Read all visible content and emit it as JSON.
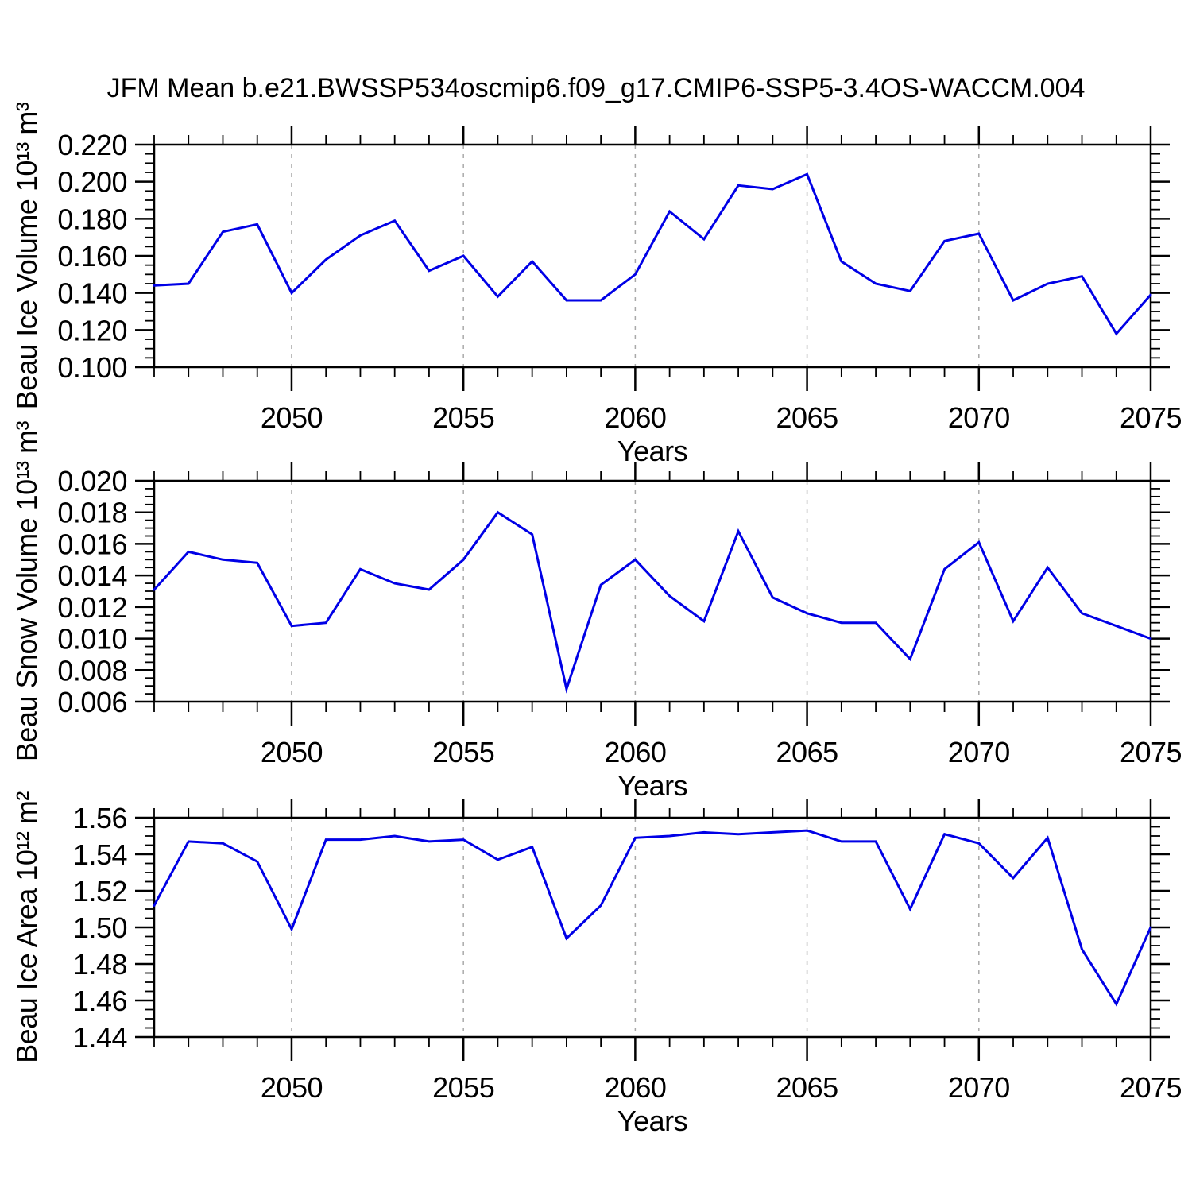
{
  "title": "JFM Mean b.e21.BWSSP534oscmip6.f09_g17.CMIP6-SSP5-3.4OS-WACCM.004",
  "line_color": "#0000e6",
  "gridline_color": "#a9a9a9",
  "x_axis": {
    "label": "Years",
    "domain": [
      2046,
      2075
    ],
    "tick_values": [
      2050,
      2055,
      2060,
      2065,
      2070,
      2075
    ],
    "tick_labels": [
      "2050",
      "2055",
      "2060",
      "2065",
      "2070",
      "2075"
    ],
    "minor_step_years": 1,
    "gridline_years": [
      2050,
      2055,
      2060,
      2065,
      2070
    ],
    "years": [
      2046,
      2047,
      2048,
      2049,
      2050,
      2051,
      2052,
      2053,
      2054,
      2055,
      2056,
      2057,
      2058,
      2059,
      2060,
      2061,
      2062,
      2063,
      2064,
      2065,
      2066,
      2067,
      2068,
      2069,
      2070,
      2071,
      2072,
      2073,
      2074,
      2075
    ]
  },
  "chart_data": [
    {
      "type": "line",
      "series_name": "beau-ice-volume",
      "ylabel": "Beau Ice Volume 10¹³ m³",
      "xlabel": "Years",
      "ylim": [
        0.1,
        0.22
      ],
      "ytick_values": [
        0.1,
        0.12,
        0.14,
        0.16,
        0.18,
        0.2,
        0.22
      ],
      "ytick_labels": [
        "0.100",
        "0.120",
        "0.140",
        "0.160",
        "0.180",
        "0.200",
        "0.220"
      ],
      "y_minor_step": 0.005,
      "values": [
        0.144,
        0.145,
        0.173,
        0.177,
        0.14,
        0.158,
        0.171,
        0.179,
        0.152,
        0.16,
        0.138,
        0.157,
        0.136,
        0.136,
        0.15,
        0.184,
        0.169,
        0.198,
        0.196,
        0.204,
        0.157,
        0.145,
        0.141,
        0.168,
        0.172,
        0.136,
        0.145,
        0.149,
        0.118,
        0.139
      ]
    },
    {
      "type": "line",
      "series_name": "beau-snow-volume",
      "ylabel": "Beau Snow Volume 10¹³ m³",
      "xlabel": "Years",
      "ylim": [
        0.006,
        0.02
      ],
      "ytick_values": [
        0.006,
        0.008,
        0.01,
        0.012,
        0.014,
        0.016,
        0.018,
        0.02
      ],
      "ytick_labels": [
        "0.006",
        "0.008",
        "0.010",
        "0.012",
        "0.014",
        "0.016",
        "0.018",
        "0.020"
      ],
      "y_minor_step": 0.0005,
      "values": [
        0.0131,
        0.0155,
        0.015,
        0.0148,
        0.0108,
        0.011,
        0.0144,
        0.0135,
        0.0131,
        0.015,
        0.018,
        0.0166,
        0.0068,
        0.0134,
        0.015,
        0.0127,
        0.0111,
        0.0168,
        0.0126,
        0.0116,
        0.011,
        0.011,
        0.0087,
        0.0144,
        0.0161,
        0.0111,
        0.0145,
        0.0116,
        0.0108,
        0.01
      ]
    },
    {
      "type": "line",
      "series_name": "beau-ice-area",
      "ylabel": "Beau Ice Area 10¹² m²",
      "xlabel": "Years",
      "ylim": [
        1.44,
        1.56
      ],
      "ytick_values": [
        1.44,
        1.46,
        1.48,
        1.5,
        1.52,
        1.54,
        1.56
      ],
      "ytick_labels": [
        "1.44",
        "1.46",
        "1.48",
        "1.50",
        "1.52",
        "1.54",
        "1.56"
      ],
      "y_minor_step": 0.005,
      "values": [
        1.512,
        1.547,
        1.546,
        1.536,
        1.499,
        1.548,
        1.548,
        1.55,
        1.547,
        1.548,
        1.537,
        1.544,
        1.494,
        1.512,
        1.549,
        1.55,
        1.552,
        1.551,
        1.552,
        1.553,
        1.547,
        1.547,
        1.51,
        1.551,
        1.546,
        1.527,
        1.549,
        1.488,
        1.458,
        1.5
      ]
    }
  ]
}
